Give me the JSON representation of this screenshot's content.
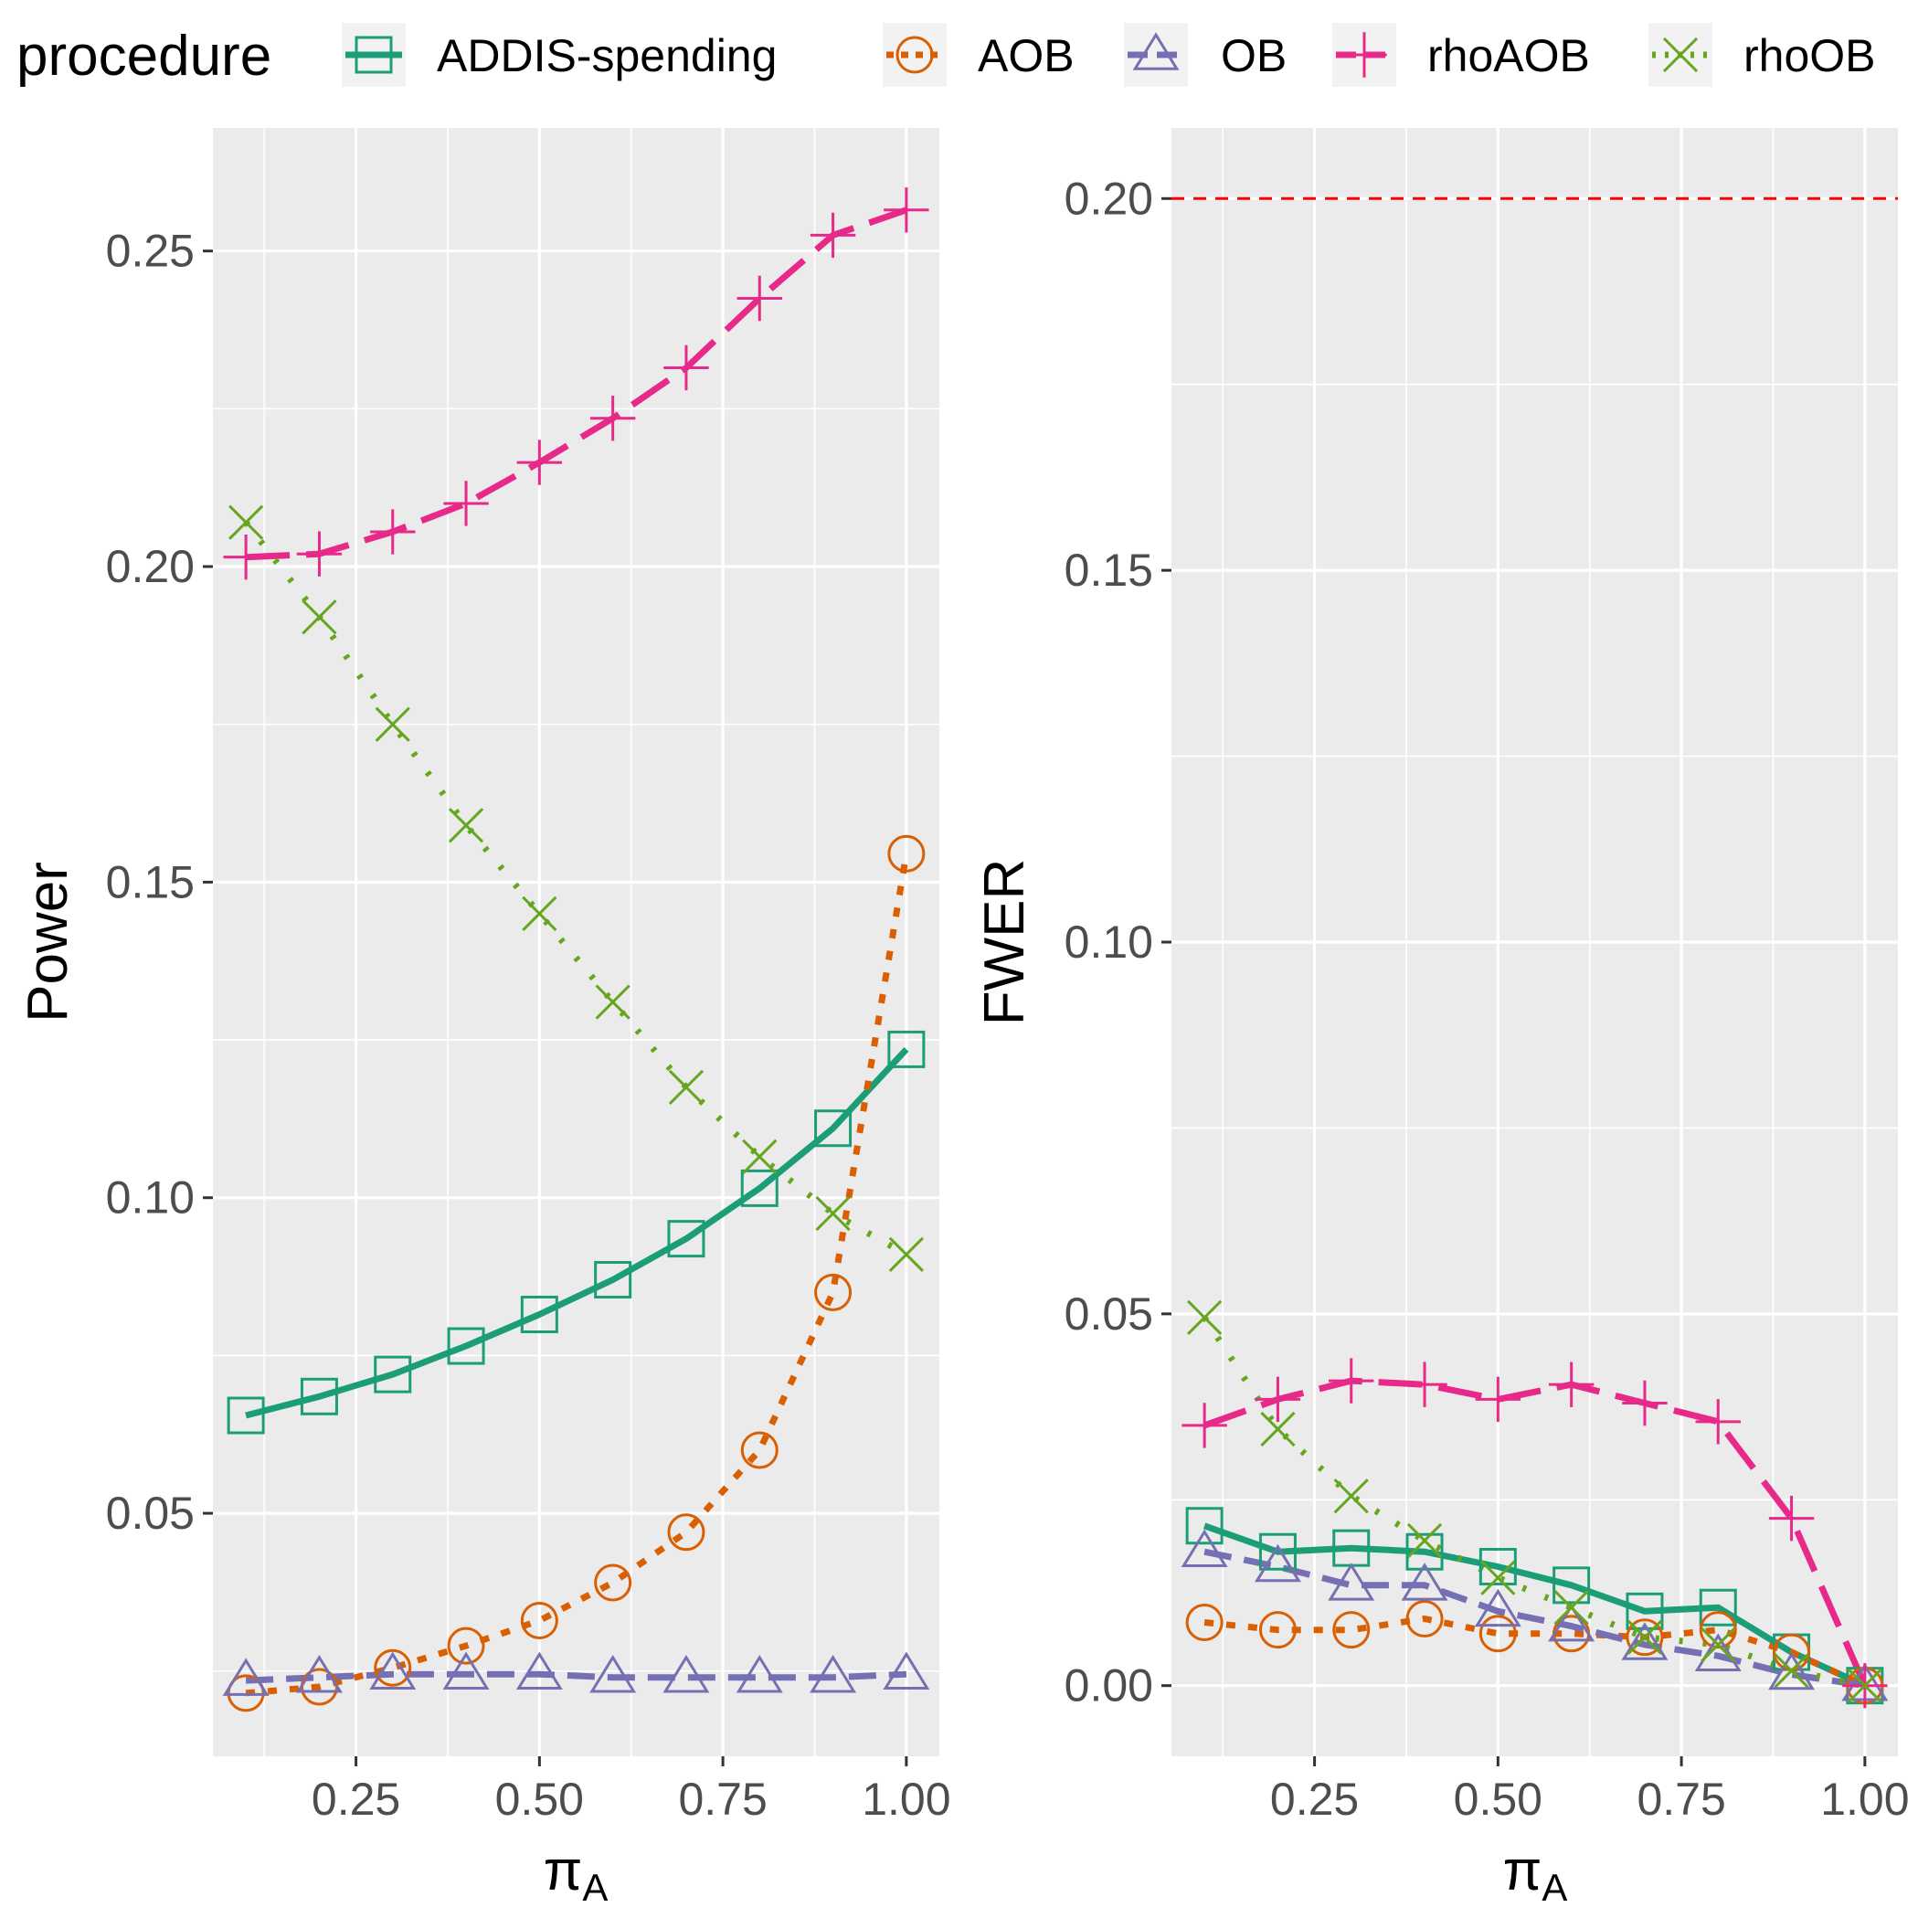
{
  "legend": {
    "title": "procedure",
    "position": "top"
  },
  "series_styles": [
    {
      "name": "ADDIS-spending",
      "color": "#1b9e77",
      "dash": "solid",
      "shape": "square-open"
    },
    {
      "name": "AOB",
      "color": "#d95f02",
      "dash": "dotted",
      "shape": "circle-open"
    },
    {
      "name": "OB",
      "color": "#7570b3",
      "dash": "dashed",
      "shape": "triangle-open"
    },
    {
      "name": "rhoAOB",
      "color": "#e7298a",
      "dash": "longdash",
      "shape": "plus"
    },
    {
      "name": "rhoOB",
      "color": "#66a61e",
      "dash": "dotdash",
      "shape": "cross"
    }
  ],
  "chart_data": [
    {
      "type": "line",
      "panel": "left",
      "xlabel": "π",
      "xlabel_sub": "A",
      "ylabel": "Power",
      "xlim": [
        0.055,
        1.045
      ],
      "ylim": [
        0.0115,
        0.2695
      ],
      "xticks": [
        0.25,
        0.5,
        0.75,
        1.0
      ],
      "xtick_labels": [
        "0.25",
        "0.50",
        "0.75",
        "1.00"
      ],
      "yticks": [
        0.05,
        0.1,
        0.15,
        0.2,
        0.25
      ],
      "ytick_labels": [
        "0.05",
        "0.10",
        "0.15",
        "0.20",
        "0.25"
      ],
      "grid": true,
      "x": [
        0.1,
        0.2,
        0.3,
        0.4,
        0.5,
        0.6,
        0.7,
        0.8,
        0.9,
        1.0
      ],
      "series": [
        {
          "name": "ADDIS-spending",
          "values": [
            0.0655,
            0.0685,
            0.072,
            0.0765,
            0.0815,
            0.087,
            0.0935,
            0.1015,
            0.111,
            0.1235
          ]
        },
        {
          "name": "AOB",
          "values": [
            0.0215,
            0.0225,
            0.0255,
            0.029,
            0.033,
            0.039,
            0.047,
            0.06,
            0.085,
            0.1545
          ]
        },
        {
          "name": "OB",
          "values": [
            0.0235,
            0.024,
            0.0245,
            0.0245,
            0.0245,
            0.024,
            0.024,
            0.024,
            0.024,
            0.0245
          ]
        },
        {
          "name": "rhoAOB",
          "values": [
            0.2015,
            0.202,
            0.2055,
            0.21,
            0.2165,
            0.2235,
            0.2315,
            0.2425,
            0.2525,
            0.2565
          ]
        },
        {
          "name": "rhoOB",
          "values": [
            0.207,
            0.192,
            0.175,
            0.159,
            0.145,
            0.131,
            0.1175,
            0.1065,
            0.0975,
            0.091
          ]
        }
      ]
    },
    {
      "type": "line",
      "panel": "right",
      "xlabel": "π",
      "xlabel_sub": "A",
      "ylabel": "FWER",
      "xlim": [
        0.055,
        1.045
      ],
      "ylim": [
        -0.0095,
        0.2095
      ],
      "xticks": [
        0.25,
        0.5,
        0.75,
        1.0
      ],
      "xtick_labels": [
        "0.25",
        "0.50",
        "0.75",
        "1.00"
      ],
      "yticks": [
        0.0,
        0.05,
        0.1,
        0.15,
        0.2
      ],
      "ytick_labels": [
        "0.00",
        "0.05",
        "0.10",
        "0.15",
        "0.20"
      ],
      "grid": true,
      "reference_line": {
        "y": 0.2,
        "color": "#ff0000",
        "dash": "dashed"
      },
      "x": [
        0.1,
        0.2,
        0.3,
        0.4,
        0.5,
        0.6,
        0.7,
        0.8,
        0.9,
        1.0
      ],
      "series": [
        {
          "name": "ADDIS-spending",
          "values": [
            0.0215,
            0.018,
            0.0185,
            0.018,
            0.016,
            0.0135,
            0.01,
            0.0105,
            0.0045,
            0.0
          ]
        },
        {
          "name": "AOB",
          "values": [
            0.0085,
            0.0075,
            0.0075,
            0.009,
            0.007,
            0.007,
            0.0065,
            0.0075,
            0.0045,
            0.0
          ]
        },
        {
          "name": "OB",
          "values": [
            0.018,
            0.016,
            0.0135,
            0.0135,
            0.01,
            0.008,
            0.0055,
            0.004,
            0.0015,
            0.0
          ]
        },
        {
          "name": "rhoAOB",
          "values": [
            0.035,
            0.0385,
            0.041,
            0.0405,
            0.0385,
            0.0405,
            0.038,
            0.0355,
            0.0225,
            0.0
          ]
        },
        {
          "name": "rhoOB",
          "values": [
            0.0495,
            0.0345,
            0.0255,
            0.0195,
            0.0145,
            0.0105,
            0.0065,
            0.0055,
            0.002,
            0.0
          ]
        }
      ]
    }
  ]
}
